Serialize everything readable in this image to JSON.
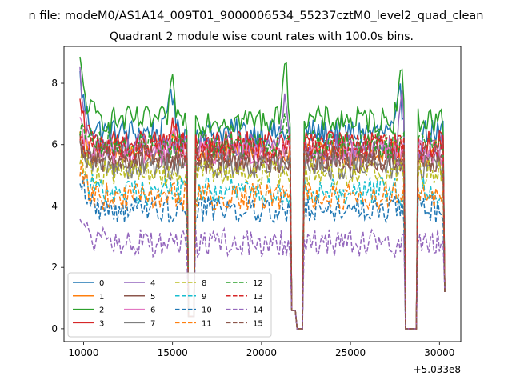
{
  "chart_data": {
    "type": "line",
    "suptitle": "n file: modeM0/AS1A14_009T01_9000006534_55237cztM0_level2_quad_clean",
    "title": "Quadrant 2 module wise count rates with 100.0s bins.",
    "xlabel": "",
    "ylabel": "",
    "x_offset_label": "+5.033e8",
    "xlim": [
      8900,
      31200
    ],
    "ylim": [
      -0.42,
      9.2
    ],
    "x_ticks": [
      10000,
      15000,
      20000,
      25000,
      30000
    ],
    "x_tick_labels": [
      "10000",
      "15000",
      "20000",
      "25000",
      "30000"
    ],
    "y_ticks": [
      0,
      2,
      4,
      6,
      8
    ],
    "y_tick_labels": [
      "0",
      "2",
      "4",
      "6",
      "8"
    ],
    "x_start": 9800,
    "x_end": 30300,
    "x_step": 100,
    "gaps": [
      {
        "from": 15900,
        "to": 16200,
        "level": 0.4
      },
      {
        "from": 21650,
        "to": 21950,
        "level": 0.6
      },
      {
        "from": 22000,
        "to": 22300,
        "level": 0.0
      },
      {
        "from": 28100,
        "to": 28700,
        "level": 0.0
      }
    ],
    "legend": {
      "location": "lower-left",
      "columns": 4
    },
    "series": [
      {
        "name": "0",
        "color": "#1f77b4",
        "style": "solid",
        "base": 6.4,
        "start": 8.2,
        "peaks": [
          {
            "x": 14900,
            "y": 8.1
          },
          {
            "x": 27800,
            "y": 7.6
          }
        ]
      },
      {
        "name": "1",
        "color": "#ff7f0e",
        "style": "solid",
        "base": 5.7,
        "start": 6.2,
        "peaks": [
          {
            "x": 15000,
            "y": 6.6
          }
        ]
      },
      {
        "name": "2",
        "color": "#2ca02c",
        "style": "solid",
        "base": 6.8,
        "start": 8.6,
        "peaks": [
          {
            "x": 15000,
            "y": 7.9
          },
          {
            "x": 21300,
            "y": 8.8
          },
          {
            "x": 27800,
            "y": 8.5
          }
        ]
      },
      {
        "name": "3",
        "color": "#d62728",
        "style": "solid",
        "base": 6.0,
        "start": 7.2,
        "peaks": [
          {
            "x": 15000,
            "y": 6.6
          }
        ]
      },
      {
        "name": "4",
        "color": "#9467bd",
        "style": "solid",
        "base": 5.9,
        "start": 8.2,
        "peaks": [
          {
            "x": 21300,
            "y": 7.8
          },
          {
            "x": 27900,
            "y": 7.4
          }
        ]
      },
      {
        "name": "5",
        "color": "#8c564b",
        "style": "solid",
        "base": 5.5,
        "start": 6.0,
        "peaks": []
      },
      {
        "name": "6",
        "color": "#e377c2",
        "style": "solid",
        "base": 5.7,
        "start": 6.5,
        "peaks": [
          {
            "x": 15000,
            "y": 6.4
          }
        ]
      },
      {
        "name": "7",
        "color": "#7f7f7f",
        "style": "solid",
        "base": 5.3,
        "start": 5.7,
        "peaks": []
      },
      {
        "name": "8",
        "color": "#bcbd22",
        "style": "dashed",
        "base": 5.1,
        "start": 5.8,
        "peaks": []
      },
      {
        "name": "9",
        "color": "#17becf",
        "style": "dashed",
        "base": 4.5,
        "start": 5.4,
        "peaks": []
      },
      {
        "name": "10",
        "color": "#1f77b4",
        "style": "dashed",
        "base": 3.9,
        "start": 5.1,
        "peaks": []
      },
      {
        "name": "11",
        "color": "#ff7f0e",
        "style": "dashed",
        "base": 4.3,
        "start": 5.3,
        "peaks": []
      },
      {
        "name": "12",
        "color": "#2ca02c",
        "style": "dashed",
        "base": 6.0,
        "start": 6.6,
        "peaks": [
          {
            "x": 21300,
            "y": 7.0
          }
        ]
      },
      {
        "name": "13",
        "color": "#d62728",
        "style": "dashed",
        "base": 5.9,
        "start": 6.4,
        "peaks": []
      },
      {
        "name": "14",
        "color": "#9467bd",
        "style": "dashed",
        "base": 2.8,
        "start": 3.8,
        "peaks": []
      },
      {
        "name": "15",
        "color": "#8c564b",
        "style": "dashed",
        "base": 5.6,
        "start": 6.3,
        "peaks": []
      }
    ]
  }
}
